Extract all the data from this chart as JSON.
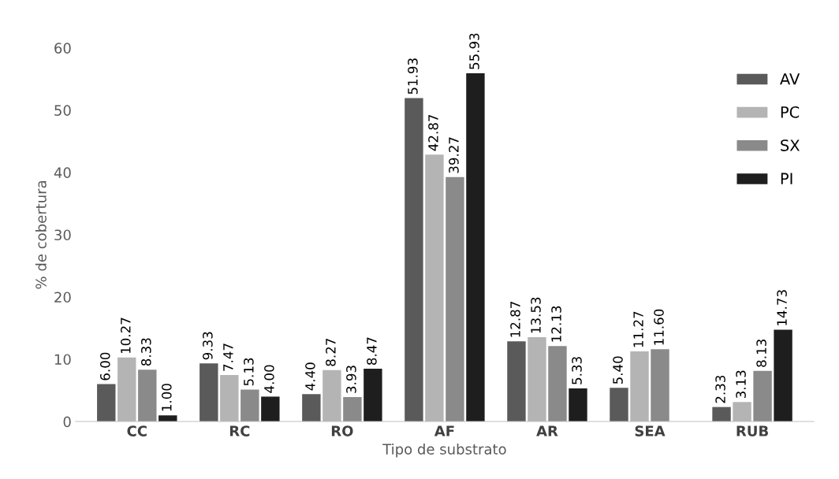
{
  "chart_data": {
    "type": "bar",
    "xlabel": "Tipo de substrato",
    "ylabel": "% de cobertura",
    "categories": [
      "CC",
      "RC",
      "RO",
      "AF",
      "AR",
      "SEA",
      "RUB"
    ],
    "series": [
      {
        "name": "AV",
        "color": "#5a5a5a",
        "values": [
          6.0,
          9.33,
          4.4,
          51.93,
          12.87,
          5.4,
          2.33
        ],
        "value_labels": [
          "6.00",
          "9.33",
          "4.40",
          "51.93",
          "12.87",
          "5.40",
          "2.33"
        ]
      },
      {
        "name": "PC",
        "color": "#b4b4b4",
        "values": [
          10.27,
          7.47,
          8.27,
          42.87,
          13.53,
          11.27,
          3.13
        ],
        "value_labels": [
          "10.27",
          "7.47",
          "8.27",
          "42.87",
          "13.53",
          "11.27",
          "3.13"
        ]
      },
      {
        "name": "SX",
        "color": "#8a8a8a",
        "values": [
          8.33,
          5.13,
          3.93,
          39.27,
          12.13,
          11.6,
          8.13
        ],
        "value_labels": [
          "8.33",
          "5.13",
          "3.93",
          "39.27",
          "12.13",
          "11.60",
          "8.13"
        ]
      },
      {
        "name": "PI",
        "color": "#1e1e1e",
        "values": [
          1.0,
          4.0,
          8.47,
          55.93,
          5.33,
          null,
          14.73
        ],
        "value_labels": [
          "1.00",
          "4.00",
          "8.47",
          "55.93",
          "5.33",
          null,
          "14.73"
        ]
      }
    ],
    "ylim": [
      0,
      60
    ],
    "yticks": [
      0,
      10,
      20,
      30,
      40,
      50,
      60
    ],
    "grid": false,
    "legend": "top right"
  }
}
